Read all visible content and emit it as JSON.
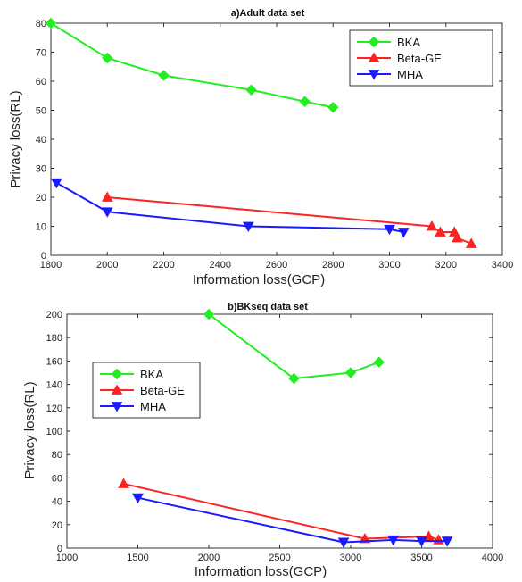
{
  "chart_data": [
    {
      "type": "line",
      "title": "a)Adult data set",
      "xlabel": "Information loss(GCP)",
      "ylabel": "Privacy loss(RL)",
      "xlim": [
        1800,
        3400
      ],
      "ylim": [
        0,
        80
      ],
      "xticks": [
        1800,
        2000,
        2200,
        2400,
        2600,
        2800,
        3000,
        3200,
        3400
      ],
      "yticks": [
        0,
        10,
        20,
        30,
        40,
        50,
        60,
        70,
        80
      ],
      "legend_position": "top-right",
      "series": [
        {
          "name": "BKA",
          "color": "#22ee22",
          "marker": "diamond",
          "x": [
            1800,
            2000,
            2200,
            2510,
            2700,
            2800
          ],
          "y": [
            80,
            68,
            62,
            57,
            53,
            51
          ]
        },
        {
          "name": "Beta-GE",
          "color": "#ff2222",
          "marker": "triangle-up",
          "x": [
            2000,
            3150,
            3180,
            3230,
            3240,
            3290
          ],
          "y": [
            20,
            10,
            8,
            8,
            6,
            4
          ]
        },
        {
          "name": "MHA",
          "color": "#1a1aff",
          "marker": "triangle-down",
          "x": [
            1820,
            2000,
            2500,
            3000,
            3050
          ],
          "y": [
            25,
            15,
            10,
            9,
            8
          ]
        }
      ]
    },
    {
      "type": "line",
      "title": "b)BKseq data set",
      "xlabel": "Information loss(GCP)",
      "ylabel": "Privacy loss(RL)",
      "xlim": [
        1000,
        4000
      ],
      "ylim": [
        0,
        200
      ],
      "xticks": [
        1000,
        1500,
        2000,
        2500,
        3000,
        3500,
        4000
      ],
      "yticks": [
        0,
        20,
        40,
        60,
        80,
        100,
        120,
        140,
        160,
        180,
        200
      ],
      "legend_position": "middle-left",
      "series": [
        {
          "name": "BKA",
          "color": "#22ee22",
          "marker": "diamond",
          "x": [
            2000,
            2600,
            3000,
            3200
          ],
          "y": [
            200,
            145,
            150,
            159
          ]
        },
        {
          "name": "Beta-GE",
          "color": "#ff2222",
          "marker": "triangle-up",
          "x": [
            1400,
            3100,
            3550,
            3620
          ],
          "y": [
            55,
            8,
            10,
            7
          ]
        },
        {
          "name": "MHA",
          "color": "#1a1aff",
          "marker": "triangle-down",
          "x": [
            1500,
            2950,
            3300,
            3500,
            3680
          ],
          "y": [
            43,
            5,
            7,
            6,
            6
          ]
        }
      ]
    }
  ]
}
